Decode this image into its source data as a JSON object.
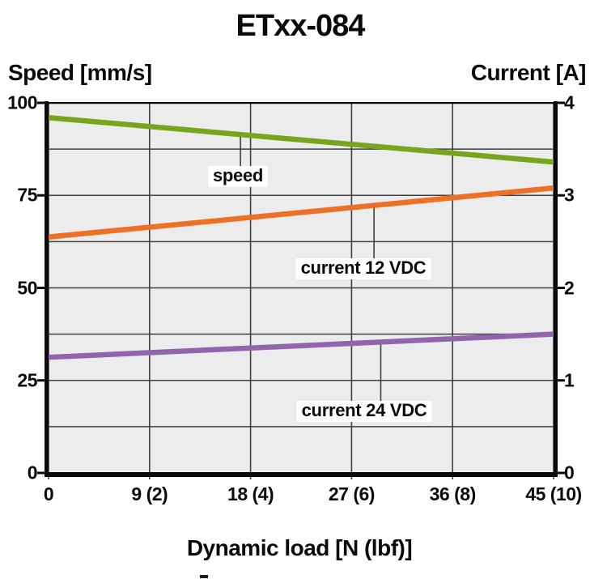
{
  "title": "ETxx-084",
  "colors": {
    "speed_line": "#77A51D",
    "current_12_line": "#EE7025",
    "current_24_line": "#9164AE",
    "plot_background": "#ECECEC",
    "gridline": "#3F3F3F",
    "axis": "#0A0A0A",
    "text": "#0A0A0A",
    "callout_background": "#FFFFFF"
  },
  "chart_data": {
    "type": "line",
    "title": "ETxx-084",
    "xlabel": "Dynamic load [N (lbf)]",
    "ylabel_left": "Speed [mm/s]",
    "ylabel_right": "Current [A]",
    "xlim": [
      0,
      45
    ],
    "ylim_left": [
      0,
      100
    ],
    "ylim_right": [
      0,
      4
    ],
    "grid": "on",
    "y_minor_step_left": 12.5,
    "legend_position": "inline-callouts",
    "x_ticks": [
      {
        "label": "0",
        "value": 0
      },
      {
        "label": "9 (2)",
        "value": 9
      },
      {
        "label": "18 (4)",
        "value": 18
      },
      {
        "label": "27 (6)",
        "value": 27
      },
      {
        "label": "36 (8)",
        "value": 36
      },
      {
        "label": "45 (10)",
        "value": 45
      }
    ],
    "y_ticks_left": [
      {
        "label": "100",
        "value": 100
      },
      {
        "label": "75",
        "value": 75
      },
      {
        "label": "50",
        "value": 50
      },
      {
        "label": "25",
        "value": 25
      },
      {
        "label": "0",
        "value": 0
      }
    ],
    "y_ticks_right": [
      {
        "label": "4",
        "value": 4
      },
      {
        "label": "3",
        "value": 3
      },
      {
        "label": "2",
        "value": 2
      },
      {
        "label": "1",
        "value": 1
      },
      {
        "label": "0",
        "value": 0
      }
    ],
    "series": [
      {
        "name": "speed",
        "axis": "left",
        "unit": "mm/s",
        "color": "#77A51D",
        "x": [
          0,
          45
        ],
        "y": [
          96,
          84
        ]
      },
      {
        "name": "current 12 VDC",
        "axis": "right",
        "unit": "A",
        "color": "#EE7025",
        "x": [
          0,
          45
        ],
        "y": [
          2.55,
          3.08
        ]
      },
      {
        "name": "current 24 VDC",
        "axis": "right",
        "unit": "A",
        "color": "#9164AE",
        "x": [
          0,
          45
        ],
        "y": [
          1.25,
          1.5
        ]
      }
    ],
    "annotations": [
      {
        "text": "speed",
        "points_to": "speed",
        "at_x": 17.1
      },
      {
        "text": "current 12 VDC",
        "points_to": "current 12 VDC",
        "at_x": 29.0
      },
      {
        "text": "current 24 VDC",
        "points_to": "current 24 VDC",
        "at_x": 29.6
      }
    ]
  }
}
